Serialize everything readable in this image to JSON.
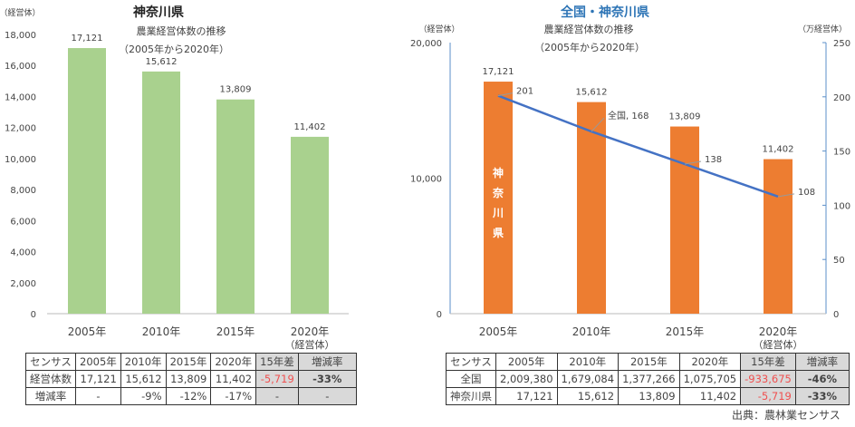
{
  "chart_data": [
    {
      "type": "bar",
      "title": "神奈川県",
      "subtitle": "農業経営体数の推移",
      "subtitle2": "（2005年から2020年）",
      "ylabel": "（経営体）",
      "xunit": "（経営体）",
      "categories": [
        "2005年",
        "2010年",
        "2015年",
        "2020年"
      ],
      "values": [
        17121,
        15612,
        13809,
        11402
      ],
      "data_labels": [
        "17,121",
        "15,612",
        "13,809",
        "11,402"
      ],
      "ylim": [
        0,
        18000
      ],
      "yticks": [
        "0",
        "2,000",
        "4,000",
        "6,000",
        "8,000",
        "10,000",
        "12,000",
        "14,000",
        "16,000",
        "18,000"
      ],
      "color": "#a9d18e",
      "grid": false
    },
    {
      "type": "bar+line",
      "title": "全国・神奈川県",
      "subtitle": "農業経営体数の推移",
      "subtitle2": "（2005年から2020年）",
      "ylabel": "（経営体）",
      "y2label": "（万経営体）",
      "xunit": "（経営体）",
      "categories": [
        "2005年",
        "2010年",
        "2015年",
        "2020年"
      ],
      "bar_series": {
        "name": "神奈川県",
        "values": [
          17121,
          15612,
          13809,
          11402
        ],
        "data_labels": [
          "17,121",
          "15,612",
          "13,809",
          "11,402"
        ],
        "color": "#ed7d31"
      },
      "line_series": {
        "name": "全国",
        "values": [
          201,
          168,
          138,
          108
        ],
        "data_labels": [
          "201",
          "全国, 168",
          "138",
          "108"
        ],
        "color": "#4472c4"
      },
      "ylim": [
        0,
        20000
      ],
      "yticks": [
        "0",
        "10,000",
        "20,000"
      ],
      "y2lim": [
        0,
        250
      ],
      "y2ticks": [
        "0",
        "50",
        "100",
        "150",
        "200",
        "250"
      ],
      "grid": false
    }
  ],
  "table_left": {
    "header": [
      "センサス",
      "2005年",
      "2010年",
      "2015年",
      "2020年",
      "15年差",
      "増減率"
    ],
    "rows": [
      [
        "経営体数",
        "17,121",
        "15,612",
        "13,809",
        "11,402",
        "-5,719",
        "-33%"
      ],
      [
        "増減率",
        "-",
        "-9%",
        "-12%",
        "-17%",
        "-",
        "-"
      ]
    ]
  },
  "table_right": {
    "header": [
      "センサス",
      "2005年",
      "2010年",
      "2015年",
      "2020年",
      "15年差",
      "増減率"
    ],
    "rows": [
      [
        "全国",
        "2,009,380",
        "1,679,084",
        "1,377,266",
        "1,075,705",
        "-933,675",
        "-46%"
      ],
      [
        "神奈川県",
        "17,121",
        "15,612",
        "13,809",
        "11,402",
        "-5,719",
        "-33%"
      ]
    ]
  },
  "source": "出典：農林業センサス"
}
